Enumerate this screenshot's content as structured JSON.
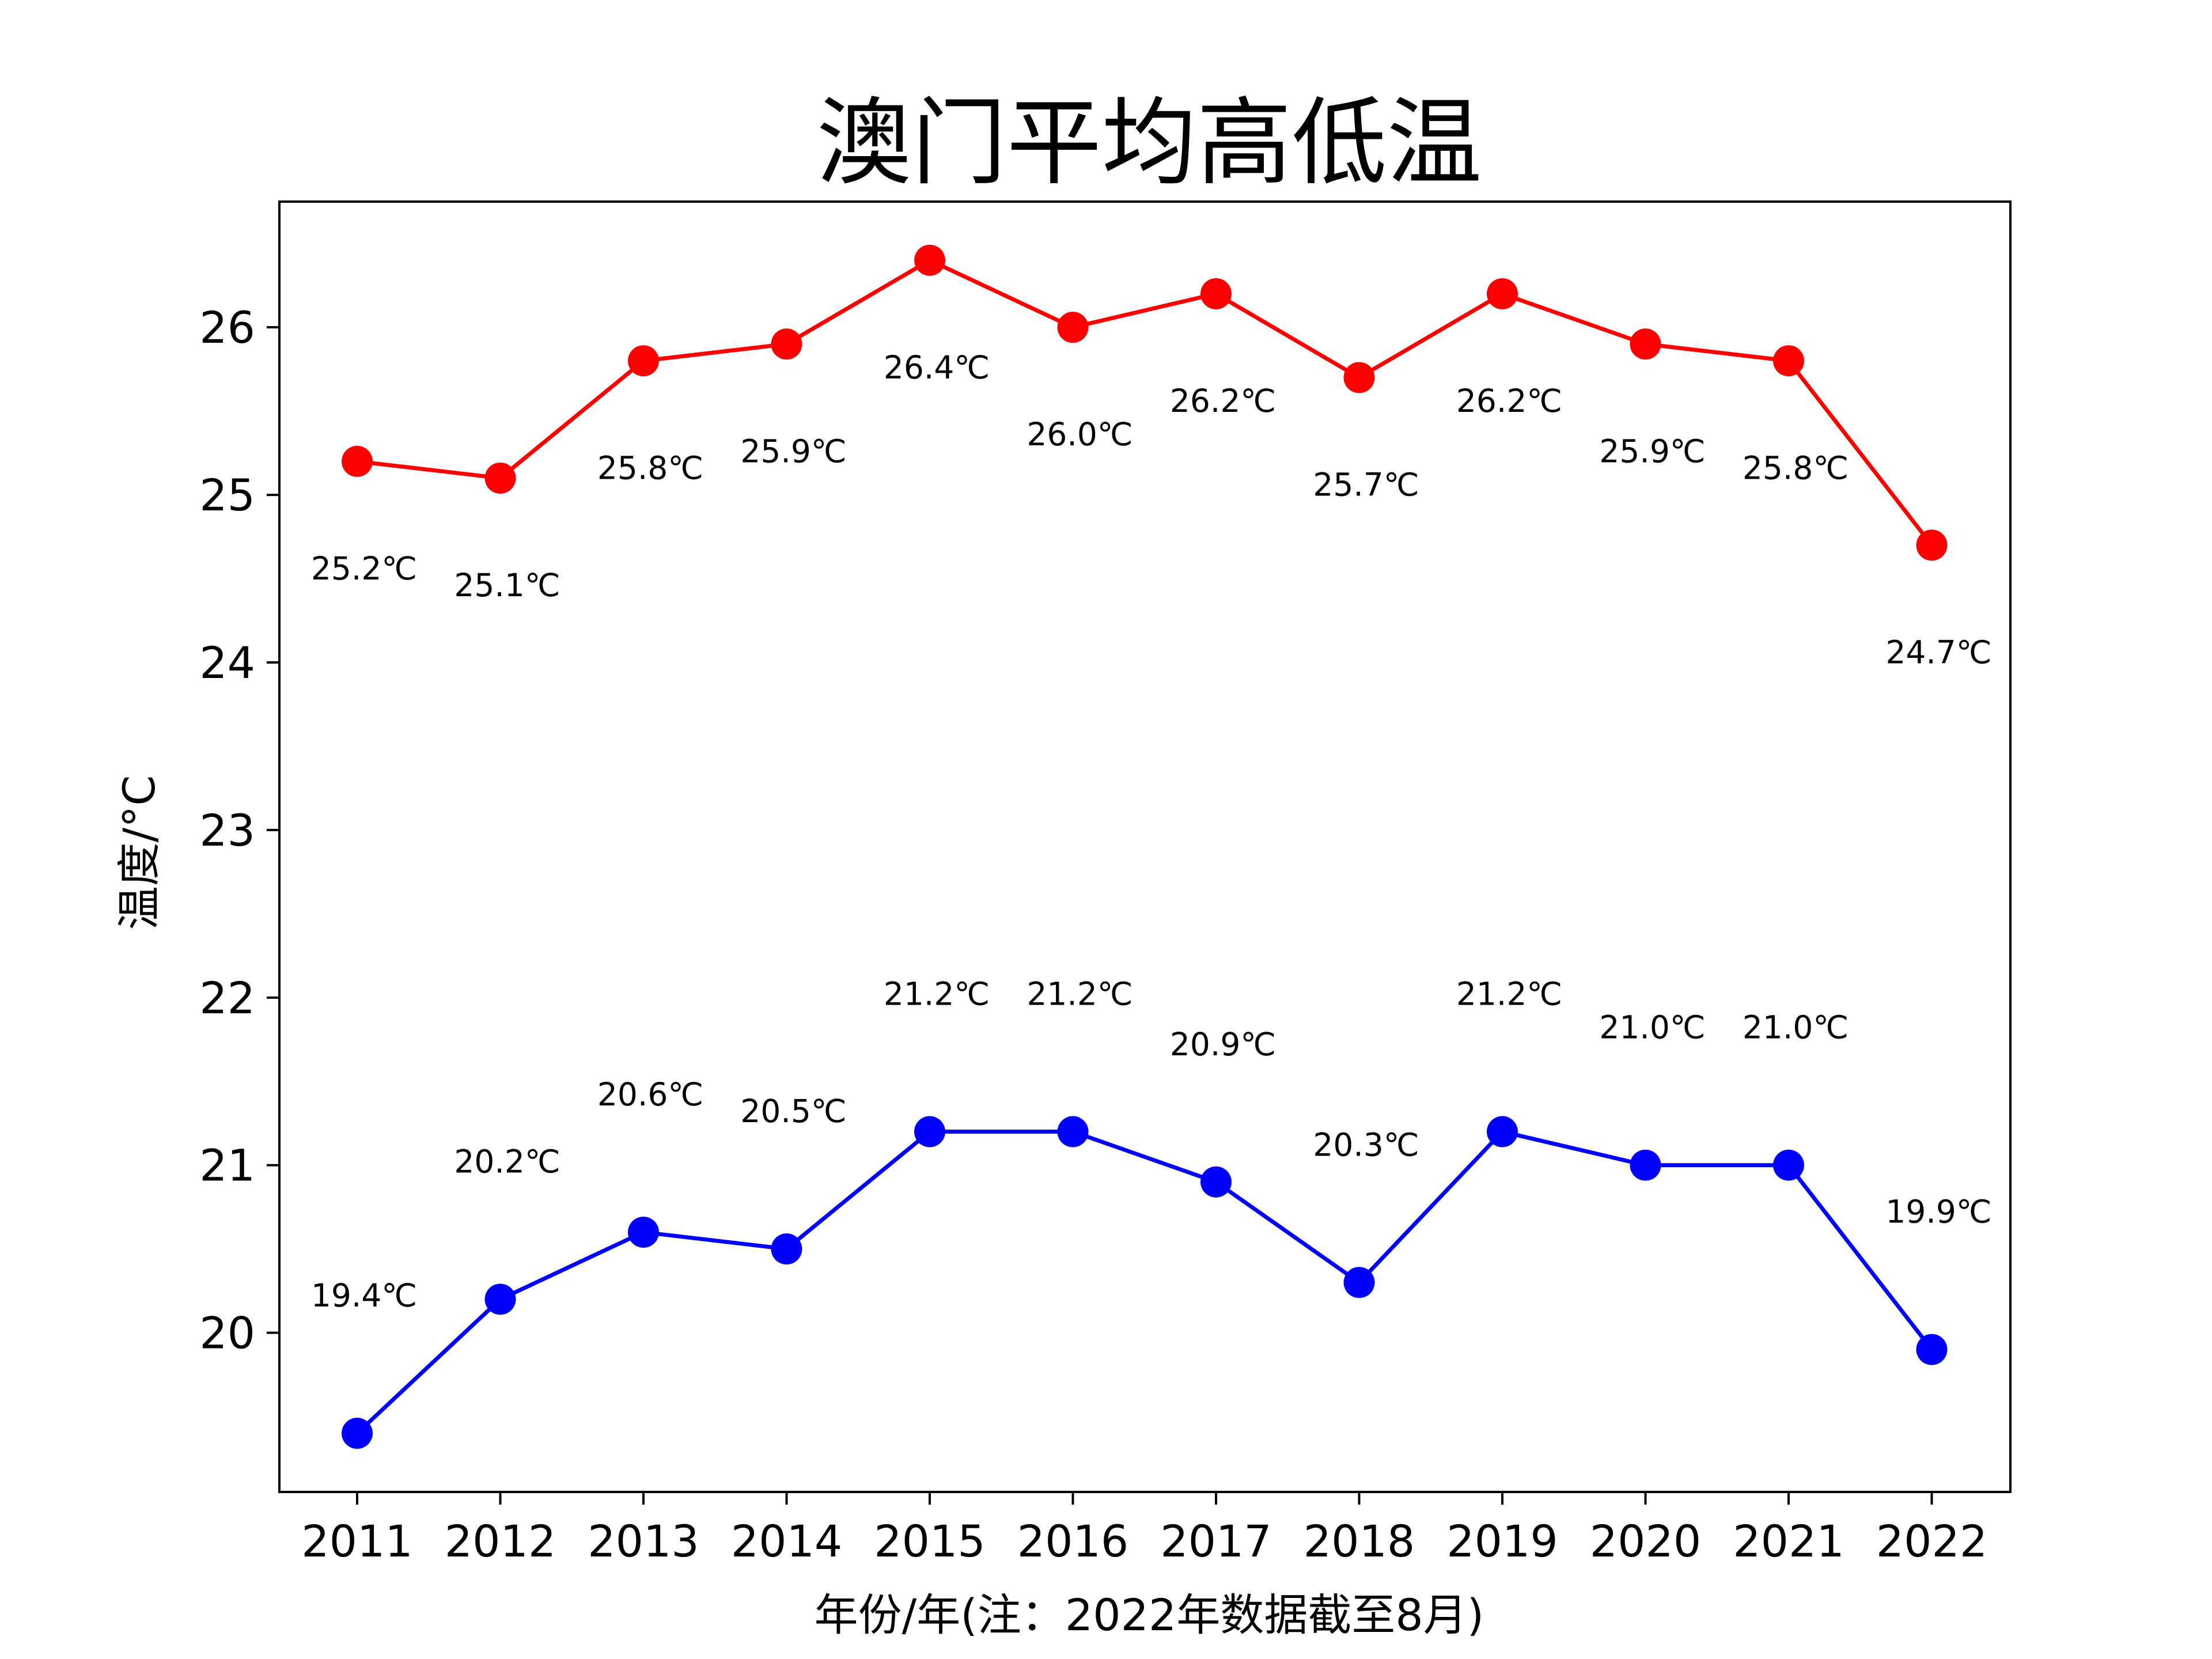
{
  "chart_data": {
    "type": "line",
    "title": "澳门平均高低温",
    "xlabel": "年份/年(注：2022年数据截至8月)",
    "ylabel": "温度/°C",
    "categories": [
      "2011",
      "2012",
      "2013",
      "2014",
      "2015",
      "2016",
      "2017",
      "2018",
      "2019",
      "2020",
      "2021",
      "2022"
    ],
    "ylim": [
      19.05,
      26.75
    ],
    "yticks": [
      20,
      21,
      22,
      23,
      24,
      25,
      26
    ],
    "grid": false,
    "series": [
      {
        "color": "#ff0000",
        "values": [
          25.2,
          25.1,
          25.8,
          25.9,
          26.4,
          26.0,
          26.2,
          25.7,
          26.2,
          25.9,
          25.8,
          24.7
        ],
        "labels": [
          "25.2℃",
          "25.1℃",
          "25.8℃",
          "25.9℃",
          "26.4℃",
          "26.0℃",
          "26.2℃",
          "25.7℃",
          "26.2℃",
          "25.9℃",
          "25.8℃",
          "24.7℃"
        ],
        "label_position": "below"
      },
      {
        "color": "#0000ff",
        "values": [
          19.4,
          20.2,
          20.6,
          20.5,
          21.2,
          21.2,
          20.9,
          20.3,
          21.2,
          21.0,
          21.0,
          19.9
        ],
        "labels": [
          "19.4℃",
          "20.2℃",
          "20.6℃",
          "20.5℃",
          "21.2℃",
          "21.2℃",
          "20.9℃",
          "20.3℃",
          "21.2℃",
          "21.0℃",
          "21.0℃",
          "19.9℃"
        ],
        "label_position": "above"
      }
    ]
  }
}
